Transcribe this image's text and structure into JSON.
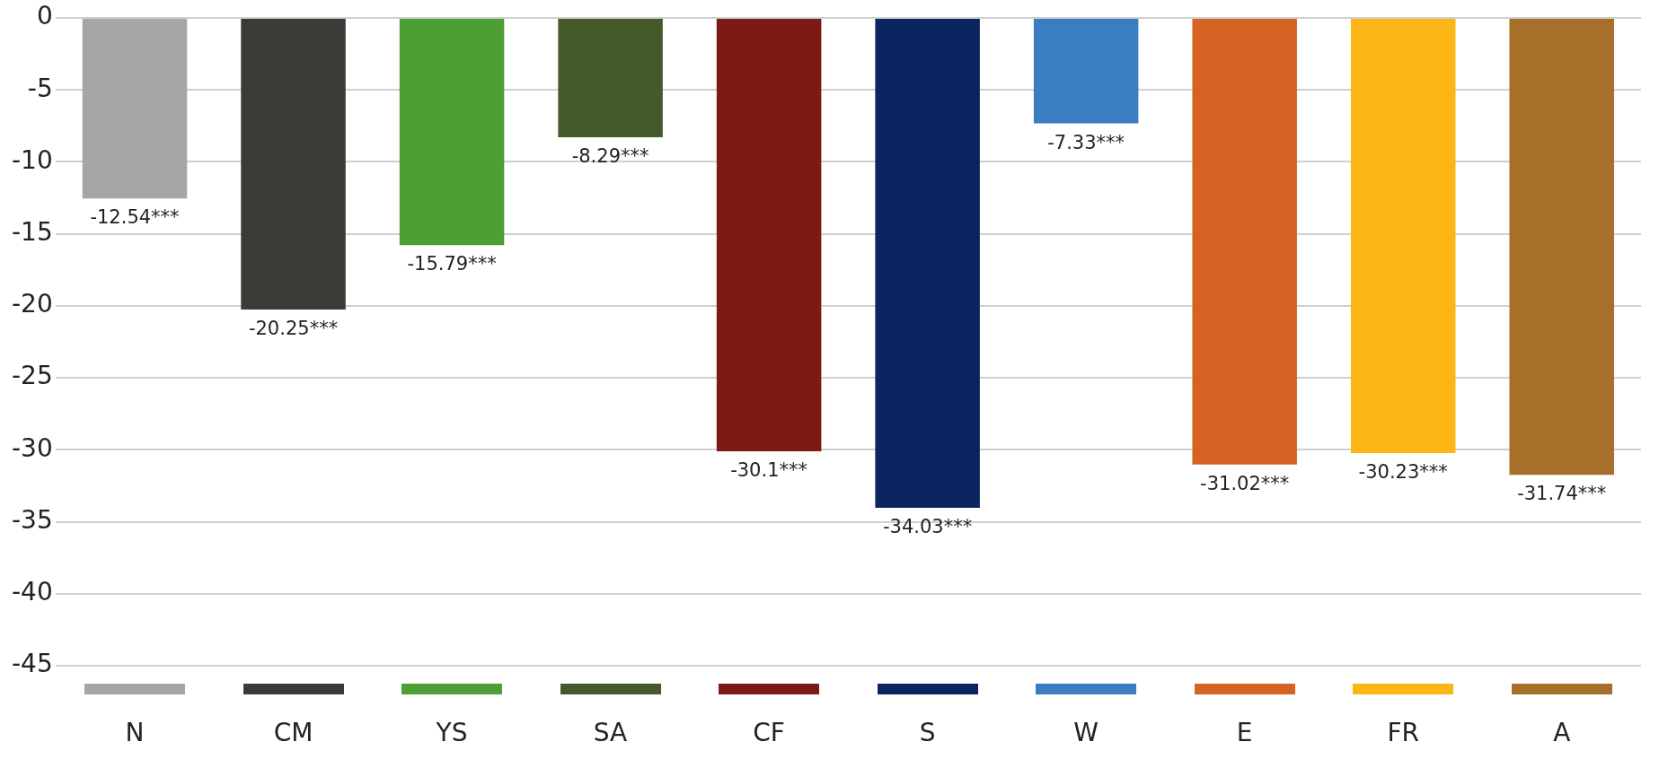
{
  "chart_data": {
    "type": "bar",
    "categories": [
      null
    ],
    "series": [
      {
        "name": "N",
        "color": "#a6a6a6",
        "values": [
          -12.54
        ],
        "value_labels": [
          "-12.54***"
        ]
      },
      {
        "name": "CM",
        "color": "#3b3b37",
        "values": [
          -20.25
        ],
        "value_labels": [
          "-20.25***"
        ]
      },
      {
        "name": "YS",
        "color": "#4c9e35",
        "values": [
          -15.79
        ],
        "value_labels": [
          "-15.79***"
        ]
      },
      {
        "name": "SA",
        "color": "#445a2b",
        "values": [
          -8.29
        ],
        "value_labels": [
          "-8.29***"
        ]
      },
      {
        "name": "CF",
        "color": "#7e1a15",
        "values": [
          -30.1
        ],
        "value_labels": [
          "-30.1***"
        ]
      },
      {
        "name": "S",
        "color": "#0c2460",
        "values": [
          -34.03
        ],
        "value_labels": [
          "-34.03***"
        ]
      },
      {
        "name": "W",
        "color": "#3a7ec2",
        "values": [
          -7.33
        ],
        "value_labels": [
          "-7.33***"
        ]
      },
      {
        "name": "E",
        "color": "#d46324",
        "values": [
          -31.02
        ],
        "value_labels": [
          "-31.02***"
        ]
      },
      {
        "name": "FR",
        "color": "#fbb616",
        "values": [
          -30.23
        ],
        "value_labels": [
          "-30.23***"
        ]
      },
      {
        "name": "A",
        "color": "#a6702b",
        "values": [
          -31.74
        ],
        "value_labels": [
          "-31.74***"
        ]
      }
    ],
    "ylim": [
      -45,
      0
    ],
    "yticks": [
      0,
      -5,
      -10,
      -15,
      -20,
      -25,
      -30,
      -35,
      -40,
      -45
    ],
    "grid": "y",
    "legend": "bottom"
  }
}
